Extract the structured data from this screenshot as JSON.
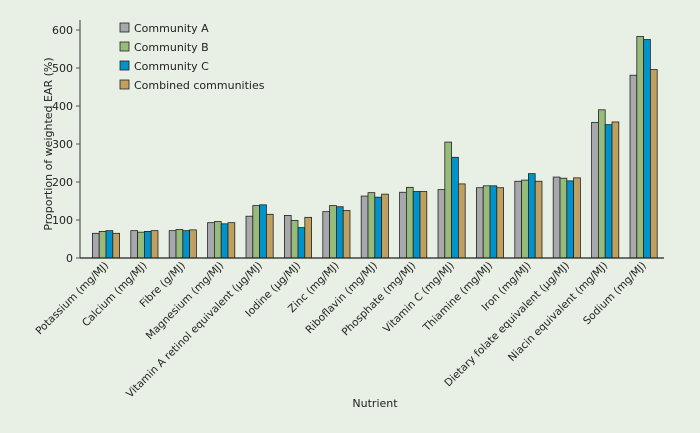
{
  "chart_data": {
    "type": "bar",
    "title": "",
    "xlabel": "Nutrient",
    "ylabel": "Proportion of weighted EAR (%)",
    "ylim": [
      0,
      600
    ],
    "yticks": [
      0,
      100,
      200,
      300,
      400,
      500,
      600
    ],
    "grid": false,
    "legend_placement": "top-left",
    "categories": [
      "Potassium (mg/MJ)",
      "Calcium (mg/MJ)",
      "Fibre (g/MJ)",
      "Magnesium (mg/MJ)",
      "Vitamin A retinol equivalent (µg/MJ)",
      "Iodine (µg/MJ)",
      "Zinc (mg/MJ)",
      "Riboflavin (mg/MJ)",
      "Phosphate (mg/MJ)",
      "Vitamin C (mg/MJ)",
      "Thiamine (mg/MJ)",
      "Iron (mg/MJ)",
      "Dietary folate equivalent (µg/MJ)",
      "Niacin equivalent (mg/MJ)",
      "Sodium (mg/MJ)"
    ],
    "series": [
      {
        "name": "Community A",
        "color": "#a7a8ab",
        "values": [
          65,
          72,
          72,
          93,
          110,
          112,
          122,
          163,
          173,
          180,
          185,
          202,
          213,
          357,
          481
        ]
      },
      {
        "name": "Community B",
        "color": "#97bb7b",
        "values": [
          70,
          68,
          75,
          96,
          138,
          99,
          138,
          172,
          186,
          305,
          190,
          205,
          210,
          390,
          583
        ]
      },
      {
        "name": "Community C",
        "color": "#0093c9",
        "values": [
          72,
          70,
          72,
          90,
          140,
          80,
          135,
          160,
          175,
          265,
          190,
          222,
          203,
          351,
          575
        ]
      },
      {
        "name": "Combined communities",
        "color": "#bfa060",
        "values": [
          65,
          72,
          74,
          93,
          115,
          107,
          125,
          168,
          175,
          195,
          185,
          202,
          211,
          358,
          496
        ]
      }
    ]
  }
}
